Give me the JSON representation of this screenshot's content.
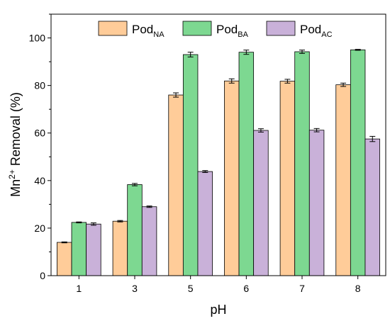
{
  "chart_data": {
    "type": "bar",
    "xlabel": "pH",
    "ylabel": {
      "prefix": "Mn",
      "superscript": "2+",
      "suffix": " Removal (%)"
    },
    "ylim": [
      0,
      110
    ],
    "yticks": [
      0,
      20,
      40,
      60,
      80,
      100
    ],
    "categories": [
      "1",
      "3",
      "5",
      "6",
      "7",
      "8"
    ],
    "legend_position": "top",
    "series": [
      {
        "name": "Pod",
        "subscript": "NA",
        "color": "#FFCC99",
        "values": [
          14.0,
          22.9,
          76.0,
          81.9,
          81.8,
          80.3
        ],
        "errors": [
          0.2,
          0.3,
          0.9,
          0.9,
          0.8,
          0.7
        ]
      },
      {
        "name": "Pod",
        "subscript": "BA",
        "color": "#7DD891",
        "values": [
          22.4,
          38.3,
          93.0,
          94.0,
          94.2,
          95.0
        ],
        "errors": [
          0.2,
          0.5,
          1.0,
          0.9,
          0.7,
          0.2
        ]
      },
      {
        "name": "Pod",
        "subscript": "AC",
        "color": "#C9B1D9",
        "values": [
          21.7,
          29.0,
          43.8,
          61.1,
          61.2,
          57.5
        ],
        "errors": [
          0.5,
          0.3,
          0.4,
          0.7,
          0.7,
          1.1
        ]
      }
    ]
  }
}
